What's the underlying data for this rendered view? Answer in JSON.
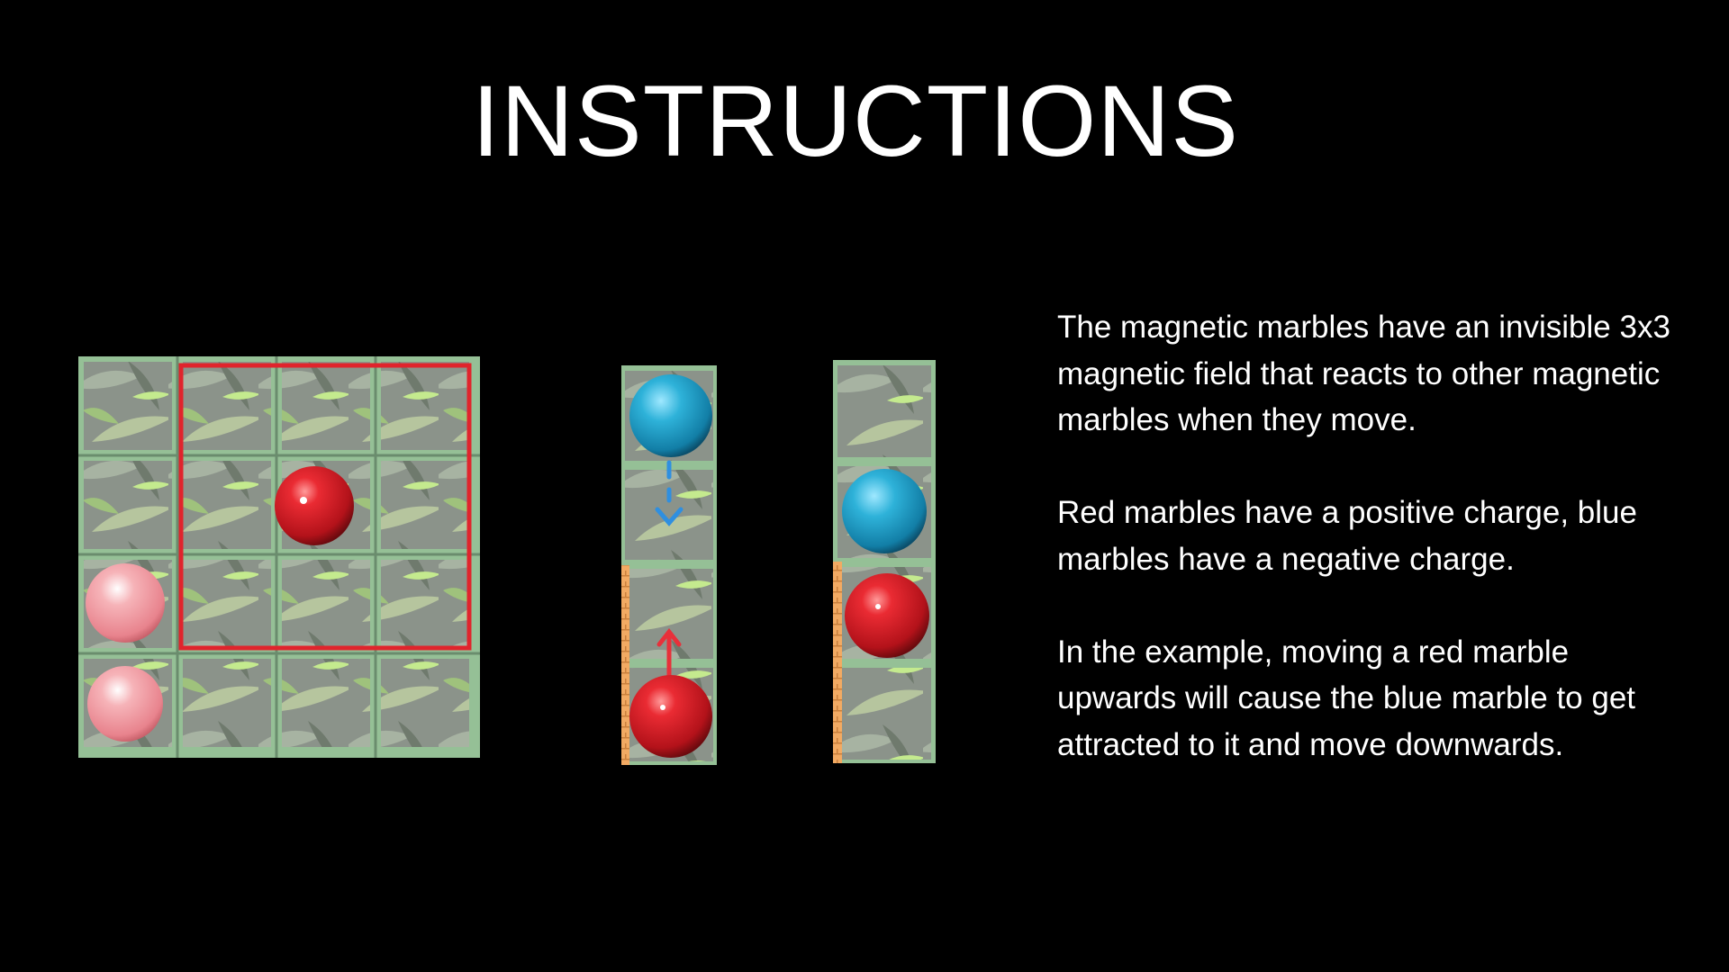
{
  "screen": {
    "title": "INSTRUCTIONS"
  },
  "instructions": [
    "The magnetic marbles have an invisible 3x3 magnetic field that reacts to other magnetic marbles when they move.",
    "Red marbles have a positive charge, blue marbles have a negative charge.",
    "In the example, moving a red marble upwards will cause the blue marble to get attracted to it and move downwards."
  ],
  "palette": {
    "background": "#000000",
    "grid_frame": "#9cc79c",
    "tile_base": "#8a9286",
    "leaf_green": "#b9e58a",
    "red_marble": "#e0202a",
    "pink_marble": "#f4a2a8",
    "blue_marble": "#27a9cf",
    "field_outline": "#e0242c",
    "brick": "#f0a860",
    "arrow_red": "#e8303a",
    "arrow_blue": "#2f8fe0"
  },
  "icons": [
    "red-marble-icon",
    "pink-marble-icon",
    "blue-marble-icon",
    "up-arrow-icon",
    "down-arrow-icon"
  ]
}
